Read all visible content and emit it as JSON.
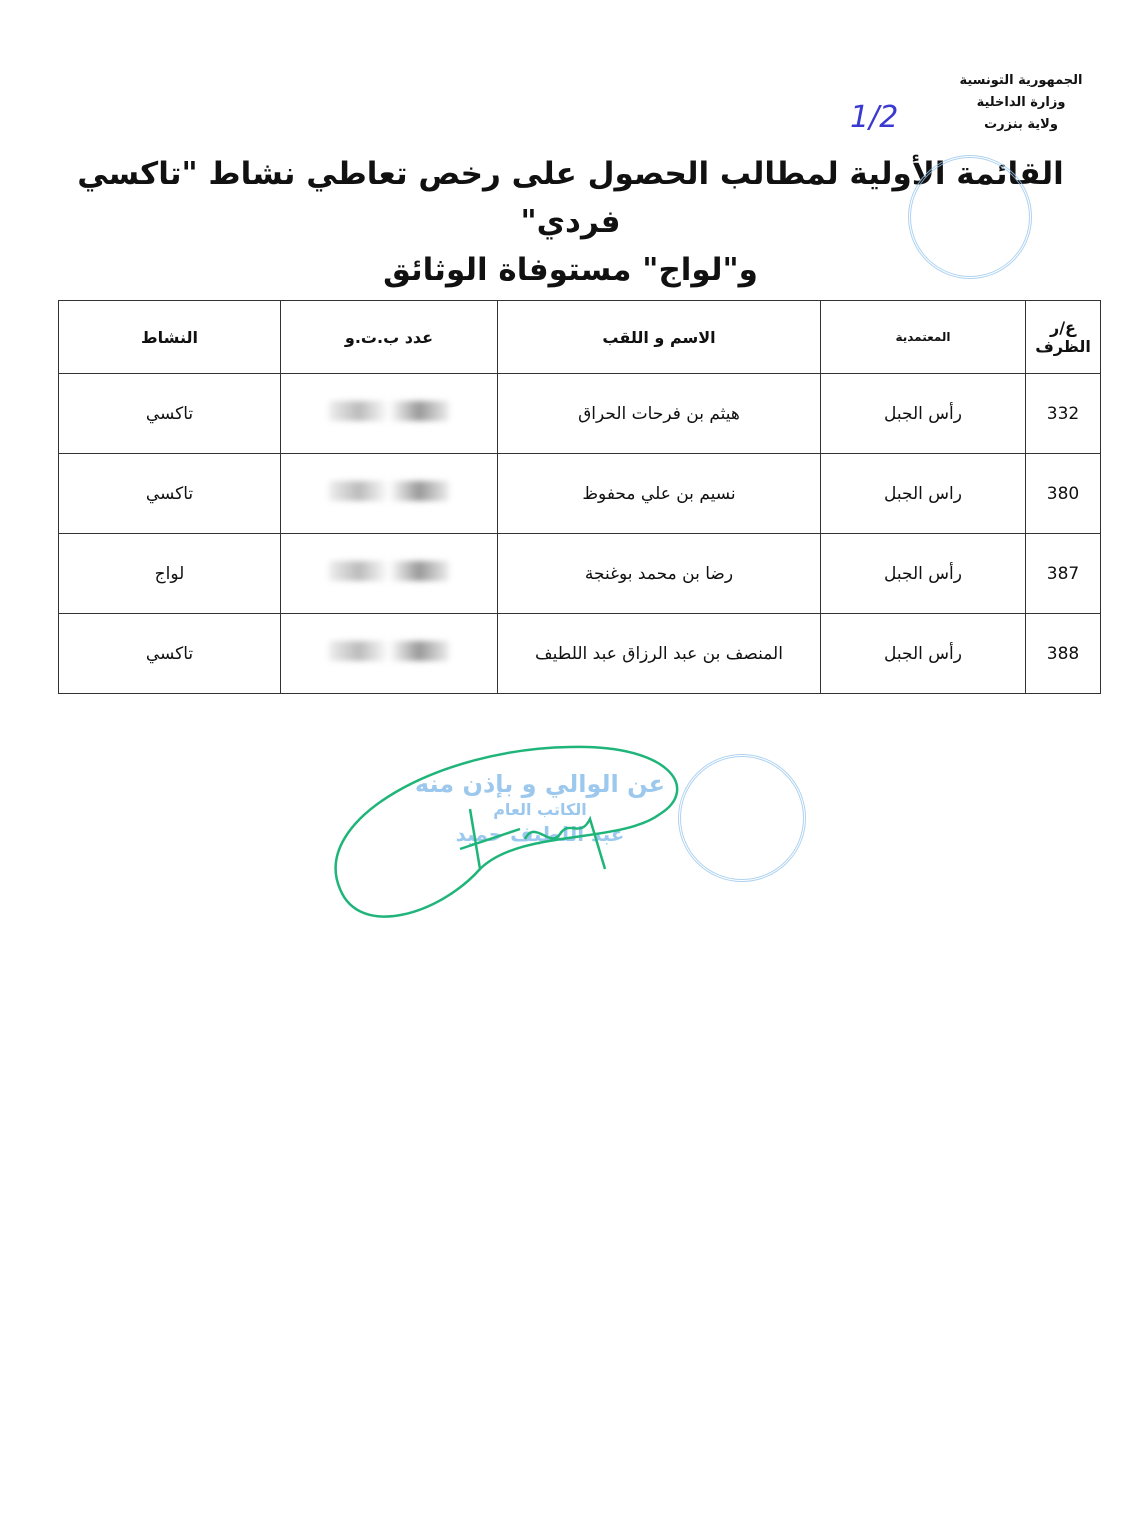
{
  "header": {
    "lines": [
      "الجمهورية التونسية",
      "وزارة الداخلية",
      "ولاية بنزرت"
    ]
  },
  "title": {
    "line1": "القائمة الأولية لمطالب الحصول على رخص تعاطي نشاط \"تاكسي فردي\"",
    "line2": "و\"لواج\" مستوفاة الوثائق"
  },
  "page_mark": "1/2",
  "table": {
    "columns": [
      "ع/ر الظرف",
      "المعتمدية",
      "الاسم و اللقب",
      "عدد ب.ت.و",
      "النشاط"
    ],
    "rows": [
      {
        "num": "332",
        "delegation": "رأس الجبل",
        "name": "هيثم بن فرحات الحراق",
        "activity": "تاكسي"
      },
      {
        "num": "380",
        "delegation": "راس الجبل",
        "name": "نسيم بن علي محفوظ",
        "activity": "تاكسي"
      },
      {
        "num": "387",
        "delegation": "رأس الجبل",
        "name": "رضا بن محمد بوغنجة",
        "activity": "لواج"
      },
      {
        "num": "388",
        "delegation": "رأس الجبل",
        "name": "المنصف بن عبد الرزاق عبد اللطيف",
        "activity": "تاكسي"
      }
    ]
  },
  "signature_stamp": {
    "lines": [
      "عن الوالي و بإذن منه",
      "الكاتب العام",
      "عبد اللطيف حميد"
    ]
  },
  "colors": {
    "stamp": "#9cc8ee",
    "signature": "#1fb57a",
    "pen": "#3a3ad0"
  }
}
